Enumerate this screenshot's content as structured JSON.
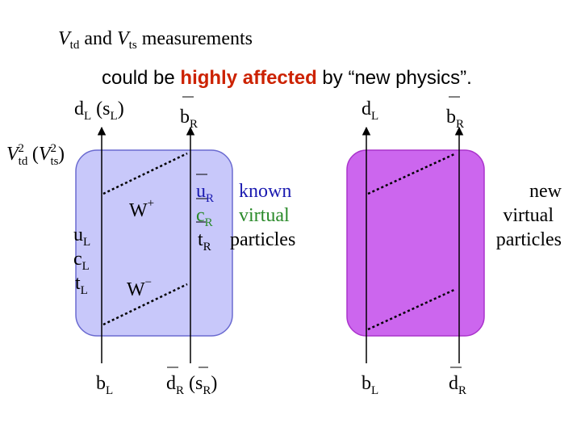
{
  "title": {
    "line1": {
      "v1": "V",
      "v1_sub": "td",
      "and": " and ",
      "v2": "V",
      "v2_sub": "ts",
      "rest": " measurements"
    },
    "line2": {
      "pre": "could be ",
      "highlight": "highly affected",
      "post": " by “new physics”."
    }
  },
  "colors": {
    "highlight": "#cc2200",
    "box_left_fill": "#c8c8fa",
    "box_left_stroke": "#6a6ad0",
    "box_right_fill": "#cc66ee",
    "box_right_stroke": "#aa33cc",
    "known": "#1a1ab0",
    "virtual": "#2a8a2a"
  },
  "left_diagram": {
    "top_left_quark": {
      "base": "d",
      "sub": "L",
      "paren_base": "s",
      "paren_sub": "L"
    },
    "top_right_quark": {
      "base": "b",
      "sub": "R"
    },
    "bottom_left_quark": {
      "base": "b",
      "sub": "L"
    },
    "bottom_right_quark": {
      "base": "d",
      "sub": "R",
      "paren_base": "s",
      "paren_sub": "R"
    },
    "label": {
      "v1": "V",
      "v1_sub": "td",
      "v1_sup": "2",
      "v2": "V",
      "v2_sub": "ts",
      "v2_sup": "2"
    },
    "w_plus": {
      "base": "W",
      "sup": "+"
    },
    "w_minus": {
      "base": "W",
      "sup": "−"
    },
    "left_quarks": [
      {
        "base": "u",
        "sub": "L"
      },
      {
        "base": "c",
        "sub": "L"
      },
      {
        "base": "t",
        "sub": "L"
      }
    ],
    "right_quarks": [
      {
        "base": "u",
        "sub": "R"
      },
      {
        "base": "c",
        "sub": "R"
      },
      {
        "base": "t",
        "sub": "R"
      }
    ],
    "annotation": [
      "known",
      "virtual",
      "particles"
    ]
  },
  "right_diagram": {
    "top_left_quark": {
      "base": "d",
      "sub": "L"
    },
    "top_right_quark": {
      "base": "b",
      "sub": "R"
    },
    "bottom_left_quark": {
      "base": "b",
      "sub": "L"
    },
    "bottom_right_quark": {
      "base": "d",
      "sub": "R"
    },
    "annotation": [
      "new",
      "virtual",
      "particles"
    ]
  }
}
